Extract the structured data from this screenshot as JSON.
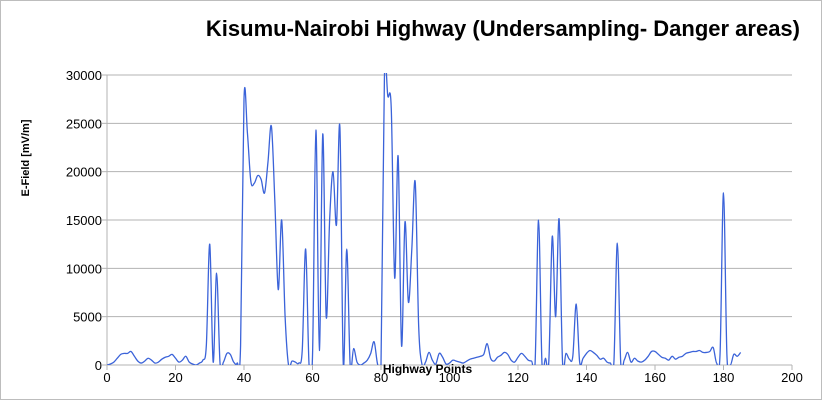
{
  "chart_data": {
    "type": "line",
    "title": "Kisumu-Nairobi Highway (Undersampling- Danger areas)",
    "xlabel": "Highway Points",
    "ylabel": "E-Field [mV/m]",
    "xlim": [
      0,
      200
    ],
    "ylim": [
      0,
      30000
    ],
    "x_ticks": [
      0,
      20,
      40,
      60,
      80,
      100,
      120,
      140,
      160,
      180,
      200
    ],
    "y_ticks": [
      0,
      5000,
      10000,
      15000,
      20000,
      25000,
      30000
    ],
    "grid": "horizontal",
    "line_color": "#3b63d9",
    "series": [
      {
        "points": [
          [
            0,
            0
          ],
          [
            1,
            100
          ],
          [
            2,
            300
          ],
          [
            3,
            700
          ],
          [
            4,
            1100
          ],
          [
            5,
            1200
          ],
          [
            6,
            1200
          ],
          [
            7,
            1400
          ],
          [
            8,
            900
          ],
          [
            9,
            400
          ],
          [
            10,
            200
          ],
          [
            11,
            400
          ],
          [
            12,
            700
          ],
          [
            13,
            500
          ],
          [
            14,
            200
          ],
          [
            15,
            300
          ],
          [
            16,
            600
          ],
          [
            17,
            800
          ],
          [
            18,
            900
          ],
          [
            19,
            1100
          ],
          [
            20,
            700
          ],
          [
            21,
            300
          ],
          [
            22,
            500
          ],
          [
            23,
            900
          ],
          [
            24,
            300
          ],
          [
            25,
            100
          ],
          [
            26,
            0
          ],
          [
            27,
            200
          ],
          [
            28,
            500
          ],
          [
            29,
            2000
          ],
          [
            30,
            12500
          ],
          [
            31,
            300
          ],
          [
            32,
            9500
          ],
          [
            33,
            200
          ],
          [
            34,
            300
          ],
          [
            35,
            1200
          ],
          [
            36,
            1100
          ],
          [
            37,
            300
          ],
          [
            38,
            200
          ],
          [
            39,
            2000
          ],
          [
            40,
            27500
          ],
          [
            41,
            24000
          ],
          [
            42,
            19000
          ],
          [
            43,
            18800
          ],
          [
            44,
            19600
          ],
          [
            45,
            19200
          ],
          [
            46,
            17800
          ],
          [
            47,
            21000
          ],
          [
            48,
            24700
          ],
          [
            49,
            17000
          ],
          [
            50,
            7800
          ],
          [
            51,
            15000
          ],
          [
            52,
            5000
          ],
          [
            53,
            0
          ],
          [
            54,
            400
          ],
          [
            55,
            300
          ],
          [
            56,
            200
          ],
          [
            57,
            1500
          ],
          [
            58,
            12000
          ],
          [
            59,
            0
          ],
          [
            60,
            900
          ],
          [
            61,
            24300
          ],
          [
            62,
            1500
          ],
          [
            63,
            23900
          ],
          [
            64,
            5000
          ],
          [
            65,
            15000
          ],
          [
            66,
            20000
          ],
          [
            67,
            14500
          ],
          [
            68,
            24600
          ],
          [
            69,
            0
          ],
          [
            70,
            12000
          ],
          [
            71,
            0
          ],
          [
            72,
            1700
          ],
          [
            73,
            300
          ],
          [
            74,
            0
          ],
          [
            75,
            200
          ],
          [
            76,
            500
          ],
          [
            77,
            1200
          ],
          [
            78,
            2400
          ],
          [
            79,
            100
          ],
          [
            80,
            0
          ],
          [
            81,
            29800
          ],
          [
            82,
            27800
          ],
          [
            83,
            26500
          ],
          [
            84,
            9000
          ],
          [
            85,
            21600
          ],
          [
            86,
            2000
          ],
          [
            87,
            14800
          ],
          [
            88,
            6500
          ],
          [
            89,
            12000
          ],
          [
            90,
            18900
          ],
          [
            91,
            4000
          ],
          [
            92,
            0
          ],
          [
            93,
            300
          ],
          [
            94,
            1300
          ],
          [
            95,
            500
          ],
          [
            96,
            100
          ],
          [
            97,
            1200
          ],
          [
            98,
            800
          ],
          [
            99,
            100
          ],
          [
            100,
            200
          ],
          [
            101,
            500
          ],
          [
            102,
            400
          ],
          [
            103,
            300
          ],
          [
            104,
            200
          ],
          [
            105,
            400
          ],
          [
            106,
            600
          ],
          [
            107,
            700
          ],
          [
            108,
            800
          ],
          [
            109,
            900
          ],
          [
            110,
            1100
          ],
          [
            111,
            2200
          ],
          [
            112,
            700
          ],
          [
            113,
            400
          ],
          [
            114,
            800
          ],
          [
            115,
            1000
          ],
          [
            116,
            1300
          ],
          [
            117,
            1100
          ],
          [
            118,
            500
          ],
          [
            119,
            300
          ],
          [
            120,
            800
          ],
          [
            121,
            1200
          ],
          [
            122,
            900
          ],
          [
            123,
            500
          ],
          [
            124,
            400
          ],
          [
            125,
            300
          ],
          [
            126,
            15000
          ],
          [
            127,
            200
          ],
          [
            128,
            700
          ],
          [
            129,
            400
          ],
          [
            130,
            13300
          ],
          [
            131,
            5000
          ],
          [
            132,
            15100
          ],
          [
            133,
            300
          ],
          [
            134,
            1200
          ],
          [
            135,
            600
          ],
          [
            136,
            900
          ],
          [
            137,
            6300
          ],
          [
            138,
            300
          ],
          [
            139,
            700
          ],
          [
            140,
            1200
          ],
          [
            141,
            1500
          ],
          [
            142,
            1300
          ],
          [
            143,
            1000
          ],
          [
            144,
            600
          ],
          [
            145,
            700
          ],
          [
            146,
            300
          ],
          [
            147,
            200
          ],
          [
            148,
            300
          ],
          [
            149,
            12600
          ],
          [
            150,
            200
          ],
          [
            151,
            500
          ],
          [
            152,
            1300
          ],
          [
            153,
            300
          ],
          [
            154,
            700
          ],
          [
            155,
            400
          ],
          [
            156,
            300
          ],
          [
            157,
            500
          ],
          [
            158,
            900
          ],
          [
            159,
            1400
          ],
          [
            160,
            1400
          ],
          [
            161,
            1100
          ],
          [
            162,
            800
          ],
          [
            163,
            700
          ],
          [
            164,
            500
          ],
          [
            165,
            900
          ],
          [
            166,
            600
          ],
          [
            167,
            800
          ],
          [
            168,
            900
          ],
          [
            169,
            1200
          ],
          [
            170,
            1300
          ],
          [
            171,
            1400
          ],
          [
            172,
            1400
          ],
          [
            173,
            1500
          ],
          [
            174,
            1300
          ],
          [
            175,
            1300
          ],
          [
            176,
            1400
          ],
          [
            177,
            1800
          ],
          [
            178,
            200
          ],
          [
            179,
            1200
          ],
          [
            180,
            17800
          ],
          [
            181,
            1000
          ],
          [
            182,
            0
          ],
          [
            183,
            1100
          ],
          [
            184,
            900
          ],
          [
            185,
            1300
          ]
        ]
      }
    ]
  }
}
